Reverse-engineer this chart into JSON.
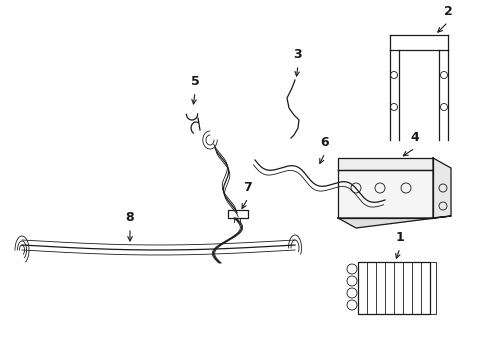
{
  "background_color": "#ffffff",
  "line_color": "#1a1a1a",
  "lw": 0.9,
  "tlw": 0.6,
  "fs": 9
}
